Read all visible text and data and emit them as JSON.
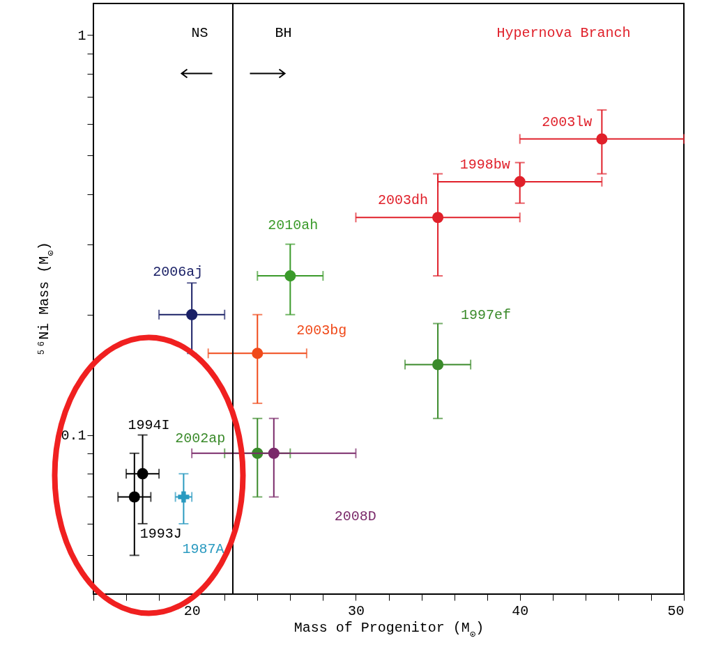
{
  "chart_data": {
    "type": "scatter",
    "xlabel": "Mass of Progenitor (M$_{⊙}$)",
    "ylabel": "⁵⁶Ni Mass (M$_{⊙}$)",
    "log": "y",
    "xlim": [
      14,
      50
    ],
    "ylim": [
      0.04,
      1.2
    ],
    "xticks": [
      {
        "value": 14,
        "label": null
      },
      {
        "value": 16,
        "label": null
      },
      {
        "value": 18,
        "label": null
      },
      20,
      {
        "value": 22,
        "label": null
      },
      {
        "value": 24,
        "label": null
      },
      {
        "value": 26,
        "label": null
      },
      {
        "value": 28,
        "label": null
      },
      30,
      {
        "value": 32,
        "label": null
      },
      {
        "value": 34,
        "label": null
      },
      {
        "value": 36,
        "label": null
      },
      {
        "value": 38,
        "label": null
      },
      40,
      {
        "value": 42,
        "label": null
      },
      {
        "value": 44,
        "label": null
      },
      {
        "value": 46,
        "label": null
      },
      {
        "value": 48,
        "label": null
      },
      50
    ],
    "yticks": [
      {
        "value": 0.05,
        "label": null
      },
      {
        "value": 0.06,
        "label": null
      },
      {
        "value": 0.07,
        "label": null
      },
      {
        "value": 0.08,
        "label": null
      },
      {
        "value": 0.09,
        "label": null
      },
      0.1,
      {
        "value": 0.2,
        "label": null
      },
      {
        "value": 0.3,
        "label": null
      },
      {
        "value": 0.4,
        "label": null
      },
      {
        "value": 0.5,
        "label": null
      },
      {
        "value": 0.6,
        "label": null
      },
      {
        "value": 0.7,
        "label": null
      },
      {
        "value": 0.8,
        "label": null
      },
      {
        "value": 0.9,
        "label": null
      },
      1
    ],
    "ref_lines": [
      {
        "axis": "x",
        "value": 22.5,
        "color": "#000000"
      }
    ],
    "annotations": [
      "NS",
      "BH",
      "Hypernova Branch"
    ],
    "series": [
      {
        "name": "2003lw",
        "color": "#e0202a",
        "marker": "circle",
        "x": [
          45
        ],
        "values": [
          0.55
        ],
        "errors": [
          [
            0.45,
            0.65
          ]
        ],
        "xerrors": [
          [
            40,
            50
          ]
        ]
      },
      {
        "name": "1998bw",
        "color": "#e0202a",
        "marker": "circle",
        "x": [
          40
        ],
        "values": [
          0.43
        ],
        "errors": [
          [
            0.38,
            0.48
          ]
        ],
        "xerrors": [
          [
            35,
            45
          ]
        ]
      },
      {
        "name": "2003dh",
        "color": "#e0202a",
        "marker": "circle",
        "x": [
          35
        ],
        "values": [
          0.35
        ],
        "errors": [
          [
            0.25,
            0.45
          ]
        ],
        "xerrors": [
          [
            30,
            40
          ]
        ]
      },
      {
        "name": "2010ah",
        "color": "#3a9a2a",
        "marker": "circle",
        "x": [
          26
        ],
        "values": [
          0.25
        ],
        "errors": [
          [
            0.2,
            0.3
          ]
        ],
        "xerrors": [
          [
            24,
            28
          ]
        ]
      },
      {
        "name": "2006aj",
        "color": "#1a2066",
        "marker": "circle",
        "x": [
          20
        ],
        "values": [
          0.2
        ],
        "errors": [
          [
            0.16,
            0.24
          ]
        ],
        "xerrors": [
          [
            18,
            22
          ]
        ]
      },
      {
        "name": "2003bg",
        "color": "#f04a1a",
        "marker": "circle",
        "x": [
          24
        ],
        "values": [
          0.16
        ],
        "errors": [
          [
            0.12,
            0.2
          ]
        ],
        "xerrors": [
          [
            21,
            27
          ]
        ]
      },
      {
        "name": "1997ef",
        "color": "#3a8a2a",
        "marker": "circle",
        "x": [
          35
        ],
        "values": [
          0.15
        ],
        "errors": [
          [
            0.11,
            0.19
          ]
        ],
        "xerrors": [
          [
            33,
            37
          ]
        ]
      },
      {
        "name": "2002ap",
        "color": "#3a8a2a",
        "marker": "circle",
        "x": [
          24
        ],
        "values": [
          0.09
        ],
        "errors": [
          [
            0.07,
            0.11
          ]
        ],
        "xerrors": [
          [
            22,
            26
          ]
        ]
      },
      {
        "name": "2008D",
        "color": "#7a2a6a",
        "marker": "circle",
        "x": [
          25
        ],
        "values": [
          0.09
        ],
        "errors": [
          [
            0.07,
            0.11
          ]
        ],
        "xerrors": [
          [
            20,
            30
          ]
        ]
      },
      {
        "name": "1994I",
        "color": "#000000",
        "marker": "circle",
        "x": [
          17
        ],
        "values": [
          0.08
        ],
        "errors": [
          [
            0.06,
            0.1
          ]
        ],
        "xerrors": [
          [
            16,
            18
          ]
        ]
      },
      {
        "name": "1993J",
        "color": "#000000",
        "marker": "circle",
        "x": [
          16.5
        ],
        "values": [
          0.07
        ],
        "errors": [
          [
            0.05,
            0.09
          ]
        ],
        "xerrors": [
          [
            15.5,
            17.5
          ]
        ]
      },
      {
        "name": "1987A",
        "color": "#2a9ac0",
        "marker": "cross",
        "x": [
          19.5
        ],
        "values": [
          0.07
        ],
        "errors": [
          [
            0.06,
            0.08
          ]
        ],
        "xerrors": [
          [
            19,
            20
          ]
        ]
      }
    ]
  }
}
